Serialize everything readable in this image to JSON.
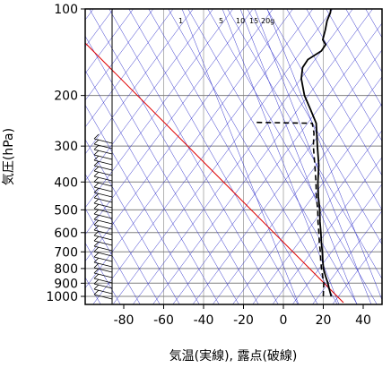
{
  "chart_data": {
    "type": "line",
    "title": "",
    "xlabel": "気温(実線), 露点(破線)",
    "ylabel": "気圧(hPa)",
    "xlim": [
      -80,
      40
    ],
    "ylim": [
      1050,
      100
    ],
    "yscale": "log",
    "grid": true,
    "x_ticks": [
      -80,
      -60,
      -40,
      -20,
      0,
      20,
      40
    ],
    "y_ticks": [
      100,
      200,
      300,
      400,
      500,
      600,
      700,
      800,
      900,
      1000
    ],
    "mixing_ratio_labels": [
      "1",
      "5",
      "10",
      "15",
      "20g"
    ],
    "colors": {
      "temperature": "#000000",
      "dewpoint": "#000000",
      "reference": "#e00000",
      "background_lines": "#3333cc",
      "grid": "#808080"
    },
    "series": [
      {
        "line_style": "solid",
        "points": [
          {
            "p": 1000,
            "t": 24
          },
          {
            "p": 975,
            "t": 22.5
          },
          {
            "p": 950,
            "t": 21
          },
          {
            "p": 925,
            "t": 19.5
          },
          {
            "p": 900,
            "t": 18
          },
          {
            "p": 850,
            "t": 14.5
          },
          {
            "p": 800,
            "t": 11
          },
          {
            "p": 750,
            "t": 8
          },
          {
            "p": 700,
            "t": 5
          },
          {
            "p": 650,
            "t": 1.5
          },
          {
            "p": 600,
            "t": -2
          },
          {
            "p": 550,
            "t": -6
          },
          {
            "p": 500,
            "t": -10
          },
          {
            "p": 450,
            "t": -15
          },
          {
            "p": 400,
            "t": -20
          },
          {
            "p": 350,
            "t": -25
          },
          {
            "p": 300,
            "t": -32
          },
          {
            "p": 250,
            "t": -40
          },
          {
            "p": 225,
            "t": -47
          },
          {
            "p": 200,
            "t": -55
          },
          {
            "p": 175,
            "t": -62
          },
          {
            "p": 160,
            "t": -65
          },
          {
            "p": 150,
            "t": -65
          },
          {
            "p": 140,
            "t": -61
          },
          {
            "p": 133,
            "t": -61
          },
          {
            "p": 128,
            "t": -64
          },
          {
            "p": 118,
            "t": -66
          },
          {
            "p": 110,
            "t": -68
          },
          {
            "p": 103,
            "t": -69
          },
          {
            "p": 100,
            "t": -70
          }
        ]
      },
      {
        "line_style": "dashed",
        "points": [
          {
            "p": 1000,
            "t": 20
          },
          {
            "p": 950,
            "t": 18
          },
          {
            "p": 900,
            "t": 16
          },
          {
            "p": 850,
            "t": 13
          },
          {
            "p": 800,
            "t": 10
          },
          {
            "p": 750,
            "t": 7
          },
          {
            "p": 700,
            "t": 4
          },
          {
            "p": 650,
            "t": 0.5
          },
          {
            "p": 600,
            "t": -3
          },
          {
            "p": 550,
            "t": -7
          },
          {
            "p": 500,
            "t": -11
          },
          {
            "p": 450,
            "t": -16
          },
          {
            "p": 400,
            "t": -21
          },
          {
            "p": 350,
            "t": -27
          },
          {
            "p": 300,
            "t": -34
          },
          {
            "p": 270,
            "t": -38
          },
          {
            "p": 250,
            "t": -42
          },
          {
            "p": 248,
            "t": -72
          }
        ]
      }
    ]
  }
}
